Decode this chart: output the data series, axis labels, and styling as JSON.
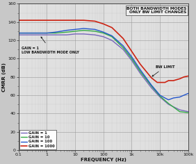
{
  "title_box": "BOTH BANDWIDTH MODES\nONLY BW LIMIT CHANGES",
  "xlabel": "FREQUENCY (Hz)",
  "ylabel": "CMRR (dB)",
  "ylim": [
    0,
    160
  ],
  "yticks": [
    0,
    20,
    40,
    60,
    80,
    100,
    120,
    140,
    160
  ],
  "xlim": [
    0.1,
    100000
  ],
  "bg_color": "#e0e0e0",
  "fig_color": "#c8c8c8",
  "legend": [
    {
      "label": "GAIN = 1",
      "color": "#7766bb"
    },
    {
      "label": "GAIN = 10",
      "color": "#33aa44"
    },
    {
      "label": "GAIN = 100",
      "color": "#2255cc"
    },
    {
      "label": "GAIN = 1000",
      "color": "#cc2211"
    }
  ],
  "gain1_freqs": [
    0.1,
    0.3,
    0.5,
    1,
    2,
    5,
    10,
    20,
    50,
    100,
    200,
    500,
    1000,
    2000,
    5000,
    10000,
    20000,
    50000,
    100000
  ],
  "gain1_vals": [
    126,
    126,
    126,
    126,
    126,
    126,
    127,
    127,
    126,
    124,
    120,
    110,
    98,
    84,
    68,
    58,
    50,
    44,
    42
  ],
  "gain10_freqs": [
    0.1,
    0.3,
    0.5,
    1,
    2,
    5,
    10,
    20,
    50,
    100,
    200,
    500,
    1000,
    2000,
    5000,
    10000,
    20000,
    50000,
    100000
  ],
  "gain10_vals": [
    128,
    128,
    128,
    128,
    128,
    129,
    130,
    131,
    130,
    128,
    124,
    112,
    100,
    86,
    70,
    59,
    51,
    42,
    41
  ],
  "gain100_freqs": [
    0.1,
    0.3,
    0.5,
    1,
    2,
    5,
    10,
    20,
    50,
    100,
    200,
    500,
    1000,
    2000,
    5000,
    10000,
    15000,
    20000,
    30000,
    50000,
    70000,
    100000
  ],
  "gain100_vals": [
    128,
    128,
    128,
    128,
    129,
    131,
    132,
    133,
    132,
    129,
    125,
    114,
    102,
    88,
    71,
    60,
    57,
    55,
    57,
    58,
    60,
    62
  ],
  "gain1000_freqs": [
    0.1,
    0.3,
    0.5,
    1,
    2,
    5,
    10,
    20,
    50,
    100,
    200,
    500,
    1000,
    2000,
    5000,
    8000,
    10000,
    15000,
    20000,
    30000,
    50000,
    70000,
    100000
  ],
  "gain1000_vals": [
    142,
    142,
    142,
    142,
    142,
    142,
    142,
    142,
    141,
    138,
    134,
    122,
    108,
    94,
    79,
    74,
    74,
    74,
    76,
    76,
    78,
    80,
    81
  ]
}
